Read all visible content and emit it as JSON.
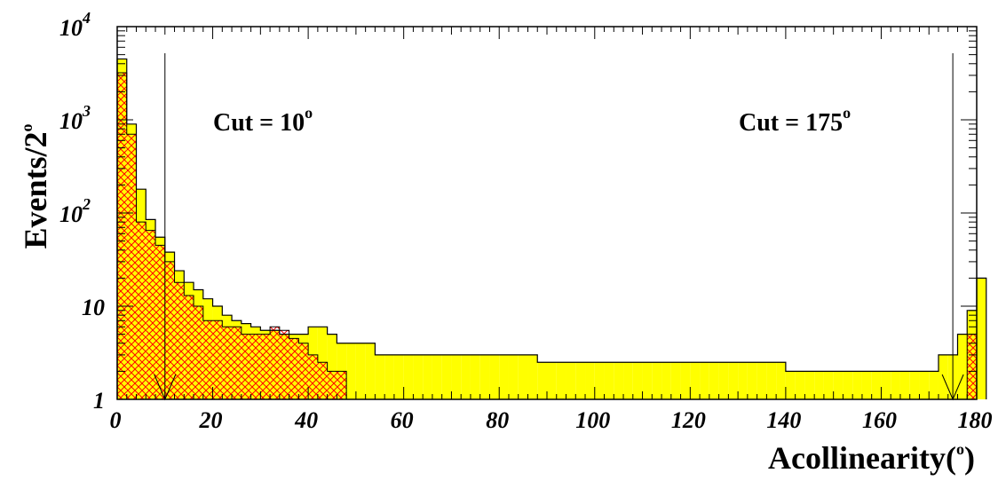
{
  "chart_data": {
    "type": "histogram",
    "scale_y": "log",
    "xlim": [
      0,
      180
    ],
    "ylim": [
      1,
      10000
    ],
    "bin_width": 2,
    "x_ticks": [
      "0",
      "20",
      "40",
      "60",
      "80",
      "100",
      "120",
      "140",
      "160",
      "180"
    ],
    "y_ticks": [
      {
        "base": "1",
        "exp": ""
      },
      {
        "base": "10",
        "exp": ""
      },
      {
        "base": "10",
        "exp": "2"
      },
      {
        "base": "10",
        "exp": "3"
      },
      {
        "base": "10",
        "exp": "4"
      }
    ],
    "ylabel": {
      "text": "Events/2",
      "sup": "o"
    },
    "xlabel": {
      "text": "Acollinearity(",
      "sup": "o",
      "tail": ")"
    },
    "annotations": [
      {
        "text": "Cut = 10",
        "sup": "o",
        "x": 10
      },
      {
        "text": "Cut = 175",
        "sup": "o",
        "x": 175
      }
    ],
    "colors": {
      "filled": "#ffff00",
      "hatch": "#ff0000",
      "outline": "#000000"
    },
    "series": [
      {
        "style": "filled",
        "values": [
          4500,
          900,
          180,
          85,
          55,
          38,
          24,
          18,
          15,
          12,
          10,
          8,
          7,
          6.5,
          6,
          5.5,
          5.5,
          5,
          5,
          5,
          6,
          6,
          5,
          4,
          4,
          4,
          4,
          3,
          3,
          3,
          3,
          3,
          3,
          3,
          3,
          3,
          3,
          3,
          3,
          3,
          3,
          3,
          3,
          3,
          2.5,
          2.5,
          2.5,
          2.5,
          2.5,
          2.5,
          2.5,
          2.5,
          2.5,
          2.5,
          2.5,
          2.5,
          2.5,
          2.5,
          2.5,
          2.5,
          2.5,
          2.5,
          2.5,
          2.5,
          2.5,
          2.5,
          2.5,
          2.5,
          2.5,
          2.5,
          2,
          2,
          2,
          2,
          2,
          2,
          2,
          2,
          2,
          2,
          2,
          2,
          2,
          2,
          2,
          2,
          3,
          3,
          5,
          9,
          20
        ]
      },
      {
        "style": "hatched",
        "values": [
          3200,
          700,
          80,
          65,
          45,
          30,
          18,
          13,
          10,
          7,
          7,
          6,
          6,
          5,
          5,
          5,
          6,
          5.5,
          4.5,
          4,
          3,
          2.5,
          2,
          2,
          1,
          1,
          1,
          1,
          1,
          1,
          1,
          1,
          1,
          1,
          1,
          1,
          1,
          1,
          1,
          1,
          1,
          1,
          1,
          1,
          1,
          1,
          1,
          1,
          1,
          1,
          1,
          1,
          1,
          1,
          1,
          1,
          1,
          1,
          1,
          1,
          1,
          1,
          1,
          1,
          1,
          1,
          1,
          1,
          1,
          1,
          1,
          1,
          1,
          1,
          1,
          1,
          1,
          1,
          1,
          1,
          1,
          1,
          1,
          1,
          1,
          1,
          1,
          1,
          1,
          5
        ]
      }
    ]
  }
}
